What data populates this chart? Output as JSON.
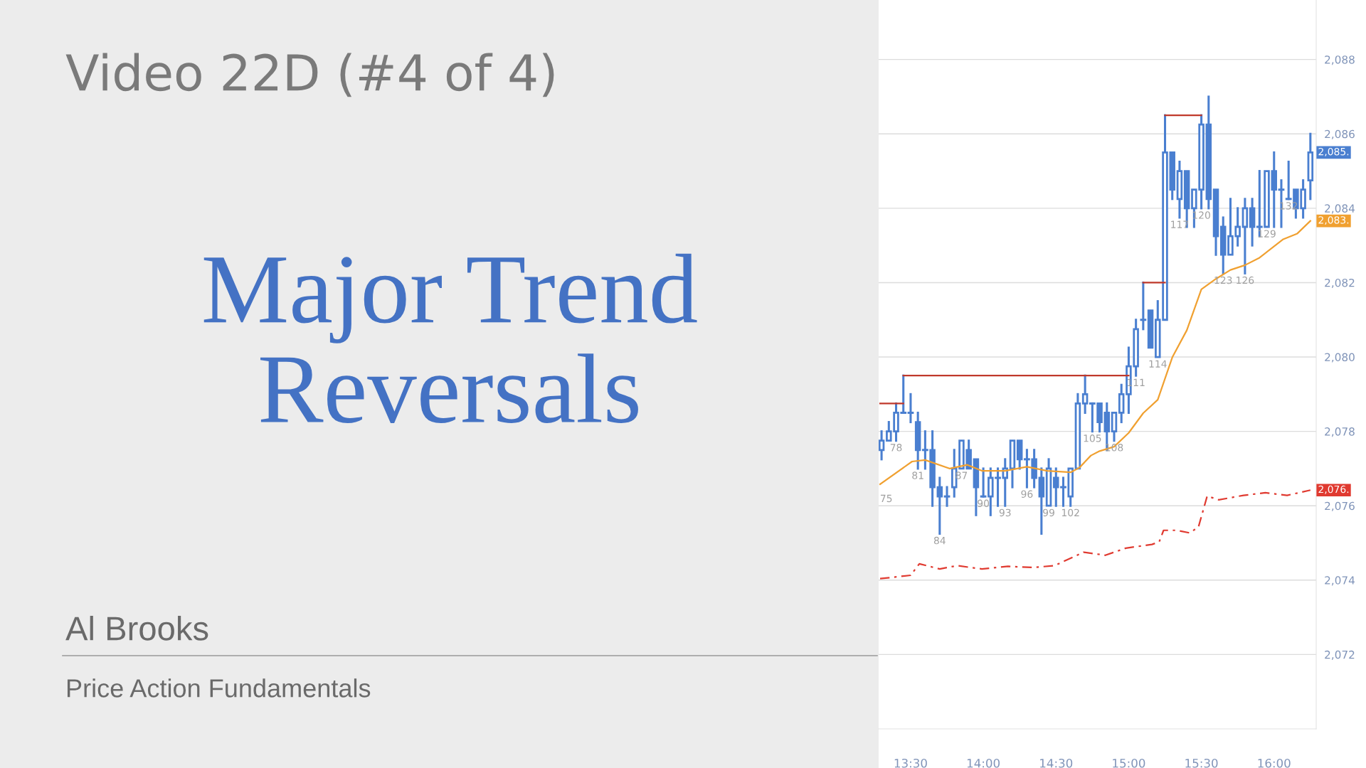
{
  "chart_data": {
    "type": "candlestick",
    "title": "Major Trend Reversals",
    "subtitle": "Video 22D (#4 of 4)",
    "annotations": [
      "Al Brooks",
      "Price Action Fundamentals",
      "75",
      {
        "text": "78",
        "x": 13.4,
        "y": 2077.75
      },
      {
        "text": "81",
        "x": 13.55,
        "y": 2077.0
      },
      {
        "text": "84",
        "x": 13.7,
        "y": 2075.25
      },
      {
        "text": "87",
        "x": 13.85,
        "y": 2077.0
      },
      {
        "text": "90",
        "x": 14.0,
        "y": 2076.25
      },
      {
        "text": "93",
        "x": 14.15,
        "y": 2076.0
      },
      {
        "text": "96",
        "x": 14.3,
        "y": 2076.5
      },
      {
        "text": "99",
        "x": 14.45,
        "y": 2076.0
      },
      {
        "text": "102",
        "x": 14.6,
        "y": 2076.0
      },
      {
        "text": "105",
        "x": 14.75,
        "y": 2078.0
      },
      {
        "text": "108",
        "x": 14.9,
        "y": 2077.75
      },
      {
        "text": "111",
        "x": 15.05,
        "y": 2079.5
      },
      {
        "text": "114",
        "x": 15.2,
        "y": 2080.0
      },
      {
        "text": "117",
        "x": 15.35,
        "y": 2083.75
      },
      {
        "text": "120",
        "x": 15.5,
        "y": 2084.0
      },
      {
        "text": "123",
        "x": 15.65,
        "y": 2082.25
      },
      {
        "text": "126",
        "x": 15.8,
        "y": 2082.25
      },
      {
        "text": "129",
        "x": 15.95,
        "y": 2083.5
      },
      {
        "text": "132",
        "x": 16.1,
        "y": 2084.25
      },
      {
        "text": "2,085.",
        "x": 16.25,
        "y": 2085.5
      },
      {
        "text": "2,083.",
        "x": 16.25,
        "y": 2083.66
      },
      {
        "text": "2,076.",
        "x": 16.25,
        "y": 2076.42
      }
    ],
    "color": "#4a7fd0",
    "x": [
      13.3,
      13.35,
      13.4,
      13.45,
      13.5,
      13.55,
      13.6,
      13.65,
      13.7,
      13.75,
      13.8,
      13.85,
      13.9,
      13.95,
      14.0,
      14.05,
      14.1,
      14.15,
      14.2,
      14.25,
      14.3,
      14.35,
      14.4,
      14.45,
      14.5,
      14.55,
      14.6,
      14.65,
      14.7,
      14.75,
      14.8,
      14.85,
      14.9,
      14.95,
      15.0,
      15.05,
      15.1,
      15.15,
      15.2,
      15.25,
      15.3,
      15.35,
      15.4,
      15.45,
      15.5,
      15.55,
      15.6,
      15.65,
      15.7,
      15.75,
      15.8,
      15.85,
      15.9,
      15.95,
      16.0,
      16.05,
      16.1,
      16.15,
      16.2,
      16.25
    ],
    "ohlc": [
      [
        2077.5,
        2078.0,
        2077.25,
        2077.75
      ],
      [
        2077.75,
        2078.25,
        2077.75,
        2078.0
      ],
      [
        2078.0,
        2078.75,
        2077.75,
        2078.5
      ],
      [
        2078.5,
        2079.5,
        2078.5,
        2078.5
      ],
      [
        2078.5,
        2079.0,
        2078.25,
        2078.5
      ],
      [
        2078.25,
        2078.5,
        2077.0,
        2077.5
      ],
      [
        2077.5,
        2078.0,
        2077.0,
        2077.5
      ],
      [
        2077.5,
        2078.0,
        2076.0,
        2076.5
      ],
      [
        2076.5,
        2076.75,
        2075.25,
        2076.25
      ],
      [
        2076.25,
        2076.5,
        2076.0,
        2076.25
      ],
      [
        2076.5,
        2077.5,
        2076.25,
        2077.0
      ],
      [
        2077.0,
        2077.75,
        2077.0,
        2077.75
      ],
      [
        2077.5,
        2077.75,
        2077.0,
        2077.0
      ],
      [
        2077.25,
        2077.25,
        2075.75,
        2076.5
      ],
      [
        2076.25,
        2077.0,
        2076.25,
        2076.25
      ],
      [
        2076.25,
        2077.0,
        2075.75,
        2076.75
      ],
      [
        2076.75,
        2077.0,
        2076.0,
        2076.75
      ],
      [
        2076.75,
        2077.25,
        2076.0,
        2077.0
      ],
      [
        2077.0,
        2077.75,
        2076.5,
        2077.75
      ],
      [
        2077.75,
        2077.75,
        2077.0,
        2077.25
      ],
      [
        2077.25,
        2077.5,
        2076.5,
        2077.25
      ],
      [
        2077.25,
        2077.5,
        2076.5,
        2076.75
      ],
      [
        2076.75,
        2077.0,
        2075.25,
        2076.25
      ],
      [
        2076.0,
        2077.25,
        2076.0,
        2077.0
      ],
      [
        2076.75,
        2077.0,
        2076.0,
        2076.5
      ],
      [
        2076.5,
        2076.75,
        2076.0,
        2076.5
      ],
      [
        2076.25,
        2077.0,
        2076.0,
        2077.0
      ],
      [
        2077.0,
        2079.0,
        2077.0,
        2078.75
      ],
      [
        2078.75,
        2079.5,
        2078.5,
        2079.0
      ],
      [
        2078.75,
        2078.75,
        2078.0,
        2078.75
      ],
      [
        2078.75,
        2078.75,
        2078.0,
        2078.25
      ],
      [
        2078.5,
        2078.75,
        2077.5,
        2078.0
      ],
      [
        2078.0,
        2078.5,
        2077.75,
        2078.5
      ],
      [
        2078.5,
        2079.25,
        2078.25,
        2079.0
      ],
      [
        2079.0,
        2080.25,
        2078.5,
        2079.75
      ],
      [
        2079.75,
        2081.0,
        2079.5,
        2080.75
      ],
      [
        2081.0,
        2082.0,
        2080.75,
        2081.0
      ],
      [
        2081.25,
        2081.25,
        2080.25,
        2080.25
      ],
      [
        2080.0,
        2081.5,
        2080.0,
        2081.0
      ],
      [
        2081.0,
        2086.5,
        2081.0,
        2085.5
      ],
      [
        2085.5,
        2085.5,
        2084.25,
        2084.5
      ],
      [
        2084.25,
        2085.25,
        2083.75,
        2085.0
      ],
      [
        2085.0,
        2085.0,
        2083.5,
        2084.0
      ],
      [
        2084.0,
        2084.5,
        2083.5,
        2084.5
      ],
      [
        2084.5,
        2086.5,
        2084.0,
        2086.25
      ],
      [
        2086.25,
        2087.0,
        2084.0,
        2084.25
      ],
      [
        2084.5,
        2084.5,
        2082.75,
        2083.25
      ],
      [
        2083.5,
        2083.75,
        2082.25,
        2082.75
      ],
      [
        2082.75,
        2084.25,
        2082.75,
        2083.25
      ],
      [
        2083.25,
        2084.0,
        2083.0,
        2083.5
      ],
      [
        2083.5,
        2084.25,
        2082.25,
        2084.0
      ],
      [
        2084.0,
        2084.25,
        2083.0,
        2083.5
      ],
      [
        2083.5,
        2085.0,
        2083.25,
        2083.5
      ],
      [
        2083.5,
        2085.0,
        2083.5,
        2085.0
      ],
      [
        2085.0,
        2085.5,
        2083.5,
        2084.5
      ],
      [
        2084.5,
        2084.75,
        2083.5,
        2084.5
      ],
      [
        2084.25,
        2085.25,
        2084.25,
        2084.25
      ],
      [
        2084.5,
        2084.5,
        2083.75,
        2084.0
      ],
      [
        2084.0,
        2084.75,
        2083.75,
        2084.5
      ],
      [
        2084.75,
        2086.0,
        2084.25,
        2085.5
      ]
    ],
    "series": [
      {
        "type": "line",
        "color": "#f0a030",
        "line_style": "solid",
        "x": [
          13.29,
          13.51,
          13.6,
          13.77,
          13.89,
          13.99,
          14.15,
          14.3,
          14.44,
          14.6,
          14.66,
          14.74,
          14.8,
          14.9,
          15.0,
          15.1,
          15.2,
          15.3,
          15.4,
          15.5,
          15.6,
          15.7,
          15.8,
          15.9,
          16.06,
          16.16,
          16.25
        ],
        "values": [
          2076.58,
          2077.19,
          2077.23,
          2077.0,
          2077.1,
          2076.94,
          2076.94,
          2077.05,
          2076.94,
          2076.9,
          2077.02,
          2077.35,
          2077.47,
          2077.59,
          2077.96,
          2078.49,
          2078.85,
          2079.99,
          2080.72,
          2081.82,
          2082.1,
          2082.34,
          2082.47,
          2082.67,
          2083.16,
          2083.32,
          2083.66
        ]
      },
      {
        "type": "line",
        "color": "#e03a30",
        "line_style": "dashed",
        "x": [
          13.29,
          13.5,
          13.56,
          13.7,
          13.82,
          13.99,
          14.17,
          14.34,
          14.49,
          14.69,
          14.84,
          14.98,
          15.16,
          15.21,
          15.24,
          15.33,
          15.42,
          15.48,
          15.54,
          15.62,
          15.79,
          15.94,
          16.09,
          16.25
        ],
        "values": [
          2074.04,
          2074.13,
          2074.44,
          2074.3,
          2074.39,
          2074.3,
          2074.37,
          2074.34,
          2074.39,
          2074.75,
          2074.67,
          2074.86,
          2074.96,
          2075.03,
          2075.34,
          2075.34,
          2075.27,
          2075.43,
          2076.26,
          2076.16,
          2076.28,
          2076.35,
          2076.28,
          2076.42
        ]
      },
      {
        "type": "line",
        "color": "#c0392b",
        "line_style": "solid",
        "x": [
          13.29,
          13.45
        ],
        "values": [
          2078.75,
          2078.75
        ]
      },
      {
        "type": "line",
        "color": "#c0392b",
        "line_style": "solid",
        "x": [
          13.45,
          15.0
        ],
        "values": [
          2079.5,
          2079.5
        ]
      },
      {
        "type": "line",
        "color": "#c0392b",
        "line_style": "solid",
        "x": [
          15.1,
          15.25
        ],
        "values": [
          2082.0,
          2082.0
        ]
      },
      {
        "type": "line",
        "color": "#c0392b",
        "line_style": "solid",
        "x": [
          15.25,
          15.5
        ],
        "values": [
          2086.5,
          2086.5
        ]
      }
    ],
    "xlim": [
      13.28,
      16.29
    ],
    "xticks": [
      {
        "value": 13.5,
        "label": "13:30"
      },
      {
        "value": 14.0,
        "label": "14:00"
      },
      {
        "value": 14.5,
        "label": "14:30"
      },
      {
        "value": 15.0,
        "label": "15:00"
      },
      {
        "value": 15.5,
        "label": "15:30"
      },
      {
        "value": 16.0,
        "label": "16:00"
      }
    ],
    "ylim": [
      2070,
      2089.6
    ],
    "yticks": [
      {
        "value": 2072,
        "label": "2,072"
      },
      {
        "value": 2074,
        "label": "2,074"
      },
      {
        "value": 2076,
        "label": "2,076"
      },
      {
        "value": 2078,
        "label": "2,078"
      },
      {
        "value": 2080,
        "label": "2,080"
      },
      {
        "value": 2082,
        "label": "2,082"
      },
      {
        "value": 2084,
        "label": "2,084"
      },
      {
        "value": 2086,
        "label": "2,086"
      },
      {
        "value": 2088,
        "label": "2,088"
      }
    ],
    "grid": "y",
    "legend": false
  }
}
